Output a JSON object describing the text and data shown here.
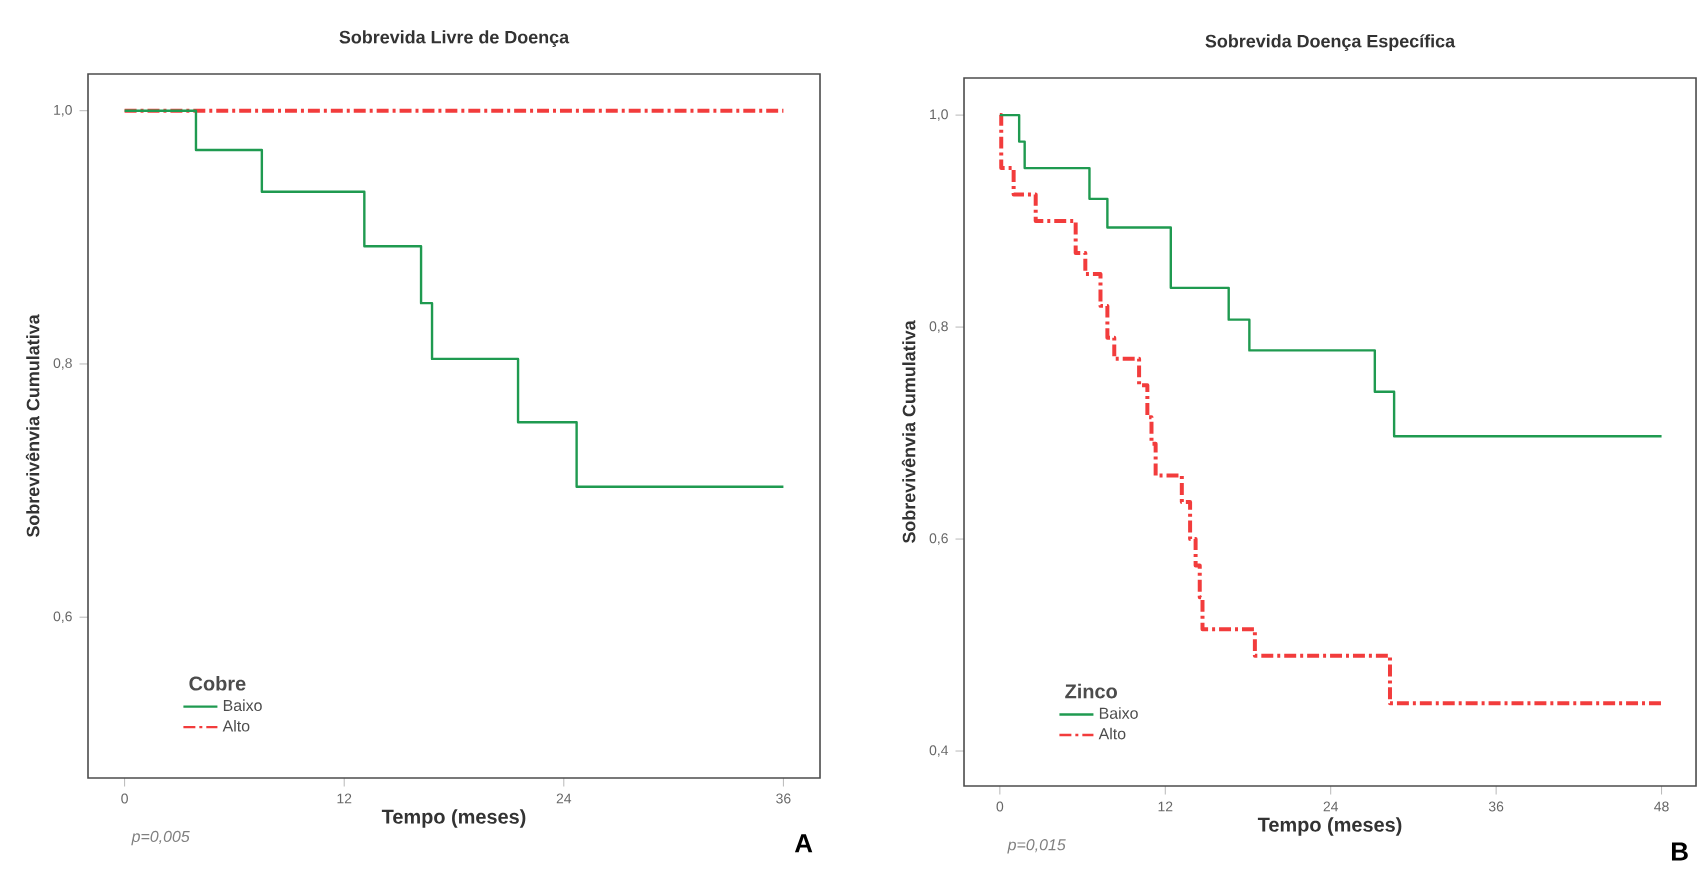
{
  "chart_data": [
    {
      "type": "step",
      "title": "Sobrevida Livre de Doença",
      "xlabel": "Tempo (meses)",
      "ylabel": "Sobrevivênvia Cumulativa",
      "legend_title": "Cobre",
      "legend": "bottom left",
      "xlim": [
        -2,
        38
      ],
      "ylim": [
        0.473,
        1.029
      ],
      "xticks": [
        0,
        12,
        24,
        36
      ],
      "yticks": [
        {
          "value": 0.6,
          "label": "0,6"
        },
        {
          "value": 0.8,
          "label": "0,8"
        },
        {
          "value": 1.0,
          "label": "1,0"
        }
      ],
      "series": [
        {
          "name": "Baixo",
          "color": "#1f9a50",
          "line_style": "solid",
          "x": [
            0,
            3.9,
            7.5,
            13.1,
            16.2,
            16.8,
            21.5,
            24.7,
            36
          ],
          "values": [
            1.0,
            0.969,
            0.936,
            0.893,
            0.848,
            0.804,
            0.754,
            0.703,
            0.703
          ]
        },
        {
          "name": "Alto",
          "color": "#f23c3c",
          "line_style": "dashed",
          "x": [
            0,
            36
          ],
          "values": [
            1.0,
            1.0
          ]
        }
      ],
      "annotations": [
        "p=0,005",
        "A"
      ]
    },
    {
      "type": "step",
      "title": "Sobrevida Doença Específica",
      "xlabel": "Tempo (meses)",
      "ylabel": "Sobrevivênvia Cumulativa",
      "legend_title": "Zinco",
      "legend": "bottom left",
      "xlim": [
        -2.6,
        50.5
      ],
      "ylim": [
        0.367,
        1.035
      ],
      "xticks": [
        0,
        12,
        24,
        36,
        48
      ],
      "yticks": [
        {
          "value": 0.4,
          "label": "0,4"
        },
        {
          "value": 0.6,
          "label": "0,6"
        },
        {
          "value": 0.8,
          "label": "0,8"
        },
        {
          "value": 1.0,
          "label": "1,0"
        }
      ],
      "series": [
        {
          "name": "Baixo",
          "color": "#1f9a50",
          "line_style": "solid",
          "x": [
            0,
            1.4,
            1.8,
            6.5,
            7.8,
            12.4,
            16.6,
            18.1,
            27.2,
            28.6,
            48
          ],
          "values": [
            1.0,
            0.975,
            0.95,
            0.921,
            0.894,
            0.837,
            0.807,
            0.778,
            0.739,
            0.697,
            0.697
          ]
        },
        {
          "name": "Alto",
          "color": "#f23c3c",
          "line_style": "dashed",
          "x": [
            0,
            0.1,
            1.0,
            2.6,
            5.5,
            6.2,
            7.3,
            7.8,
            8.3,
            10.1,
            10.7,
            11.0,
            11.3,
            13.2,
            13.8,
            14.2,
            14.5,
            14.7,
            18.5,
            28.3,
            48
          ],
          "values": [
            1.0,
            0.95,
            0.925,
            0.9,
            0.87,
            0.85,
            0.82,
            0.79,
            0.77,
            0.745,
            0.715,
            0.69,
            0.66,
            0.635,
            0.6,
            0.575,
            0.545,
            0.515,
            0.49,
            0.445,
            0.445
          ]
        }
      ],
      "annotations": [
        "p=0,015",
        "B"
      ]
    }
  ]
}
